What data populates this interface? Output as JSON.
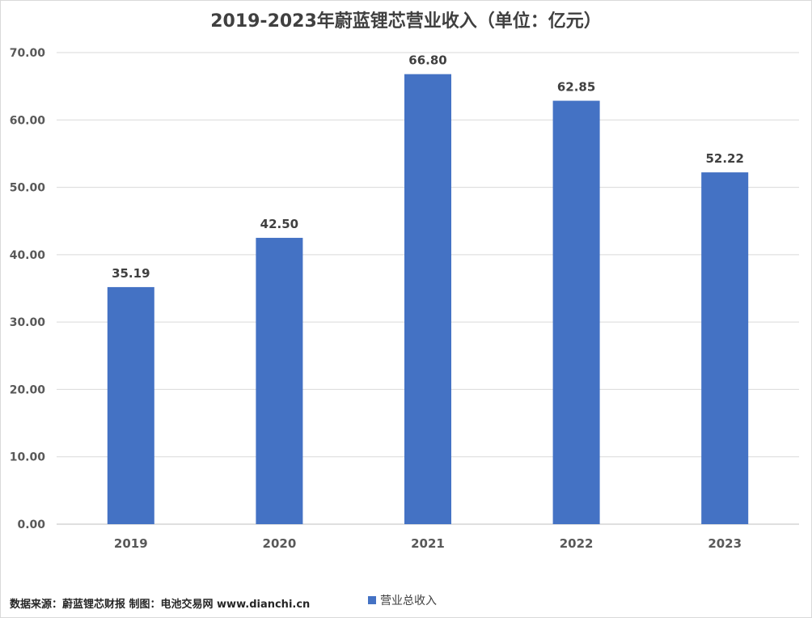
{
  "chart_data": {
    "type": "bar",
    "title": "2019-2023年蔚蓝锂芯营业收入（单位：亿元）",
    "categories": [
      "2019",
      "2020",
      "2021",
      "2022",
      "2023"
    ],
    "series": [
      {
        "name": "营业总收入",
        "values": [
          35.19,
          42.5,
          66.8,
          62.85,
          52.22
        ]
      }
    ],
    "value_labels": [
      "35.19",
      "42.50",
      "66.80",
      "62.85",
      "52.22"
    ],
    "ylim": [
      0,
      70
    ],
    "yticks": [
      "0.00",
      "10.00",
      "20.00",
      "30.00",
      "40.00",
      "50.00",
      "60.00",
      "70.00"
    ],
    "grid": true,
    "legend_position": "bottom",
    "bar_color": "#4472c4"
  },
  "source_note": "数据来源：蔚蓝锂芯财报  制图：电池交易网 www.dianchi.cn"
}
